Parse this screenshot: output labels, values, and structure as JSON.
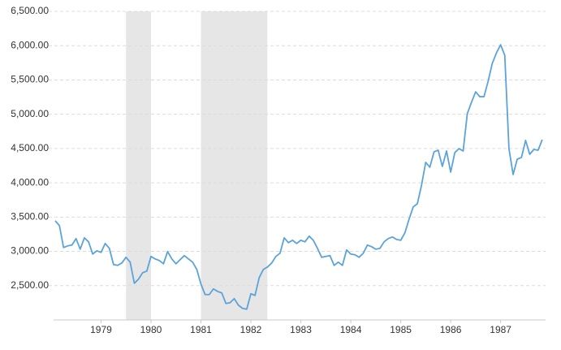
{
  "chart_data": {
    "type": "line",
    "color": "#5ba3d9",
    "grid": true,
    "xlim": [
      1978.55,
      1988.4
    ],
    "ylim": [
      2000,
      6500
    ],
    "yticks": [
      {
        "value": 2500,
        "label": "2,500.00"
      },
      {
        "value": 3000,
        "label": "3,000.00"
      },
      {
        "value": 3500,
        "label": "3,500.00"
      },
      {
        "value": 4000,
        "label": "4,000.00"
      },
      {
        "value": 4500,
        "label": "4,500.00"
      },
      {
        "value": 5000,
        "label": "5,000.00"
      },
      {
        "value": 5500,
        "label": "5,500.00"
      },
      {
        "value": 6000,
        "label": "6,000.00"
      },
      {
        "value": 6500,
        "label": "6,500.00"
      }
    ],
    "xticks": [
      {
        "value": 1979.5,
        "label": "1979"
      },
      {
        "value": 1980.5,
        "label": "1980"
      },
      {
        "value": 1981.5,
        "label": "1981"
      },
      {
        "value": 1982.5,
        "label": "1982"
      },
      {
        "value": 1983.5,
        "label": "1983"
      },
      {
        "value": 1984.5,
        "label": "1984"
      },
      {
        "value": 1985.5,
        "label": "1985"
      },
      {
        "value": 1986.5,
        "label": "1986"
      },
      {
        "value": 1987.5,
        "label": "1987"
      }
    ],
    "shaded_ranges": [
      [
        1980.0,
        1980.5
      ],
      [
        1981.5,
        1982.83
      ]
    ],
    "x": [
      1978.583,
      1978.667,
      1978.75,
      1978.833,
      1978.917,
      1979.0,
      1979.083,
      1979.167,
      1979.25,
      1979.333,
      1979.417,
      1979.5,
      1979.583,
      1979.667,
      1979.75,
      1979.833,
      1979.917,
      1980.0,
      1980.083,
      1980.167,
      1980.25,
      1980.333,
      1980.417,
      1980.5,
      1980.583,
      1980.667,
      1980.75,
      1980.833,
      1980.917,
      1981.0,
      1981.083,
      1981.167,
      1981.25,
      1981.333,
      1981.417,
      1981.5,
      1981.583,
      1981.667,
      1981.75,
      1981.833,
      1981.917,
      1982.0,
      1982.083,
      1982.167,
      1982.25,
      1982.333,
      1982.417,
      1982.5,
      1982.583,
      1982.667,
      1982.75,
      1982.833,
      1982.917,
      1983.0,
      1983.083,
      1983.167,
      1983.25,
      1983.333,
      1983.417,
      1983.5,
      1983.583,
      1983.667,
      1983.75,
      1983.833,
      1983.917,
      1984.0,
      1984.083,
      1984.167,
      1984.25,
      1984.333,
      1984.417,
      1984.5,
      1984.583,
      1984.667,
      1984.75,
      1984.833,
      1984.917,
      1985.0,
      1985.083,
      1985.167,
      1985.25,
      1985.333,
      1985.417,
      1985.5,
      1985.583,
      1985.667,
      1985.75,
      1985.833,
      1985.917,
      1986.0,
      1986.083,
      1986.167,
      1986.25,
      1986.333,
      1986.417,
      1986.5,
      1986.583,
      1986.667,
      1986.75,
      1986.833,
      1986.917,
      1987.0,
      1987.083,
      1987.167,
      1987.25,
      1987.333,
      1987.417,
      1987.5,
      1987.583,
      1987.667,
      1987.75,
      1987.833,
      1987.917,
      1988.0,
      1988.083,
      1988.167,
      1988.25,
      1988.333
    ],
    "values": [
      3446,
      3375,
      3056,
      3080,
      3092,
      3186,
      3032,
      3198,
      3139,
      2961,
      3009,
      2985,
      3115,
      3044,
      2808,
      2796,
      2831,
      2914,
      2843,
      2535,
      2595,
      2689,
      2713,
      2926,
      2890,
      2867,
      2819,
      2997,
      2890,
      2819,
      2879,
      2938,
      2890,
      2843,
      2737,
      2524,
      2370,
      2370,
      2453,
      2417,
      2394,
      2240,
      2252,
      2311,
      2216,
      2169,
      2157,
      2382,
      2358,
      2618,
      2737,
      2772,
      2831,
      2926,
      2973,
      3198,
      3127,
      3162,
      3115,
      3162,
      3139,
      3222,
      3162,
      3044,
      2914,
      2926,
      2938,
      2796,
      2843,
      2796,
      3021,
      2961,
      2950,
      2914,
      2973,
      3092,
      3068,
      3032,
      3044,
      3139,
      3186,
      3210,
      3174,
      3162,
      3269,
      3470,
      3648,
      3695,
      3967,
      4298,
      4227,
      4452,
      4476,
      4239,
      4464,
      4156,
      4440,
      4499,
      4464,
      5008,
      5174,
      5327,
      5256,
      5256,
      5481,
      5741,
      5895,
      6013,
      5860,
      4499,
      4121,
      4345,
      4369,
      4618,
      4416,
      4487,
      4475,
      4629
    ]
  }
}
